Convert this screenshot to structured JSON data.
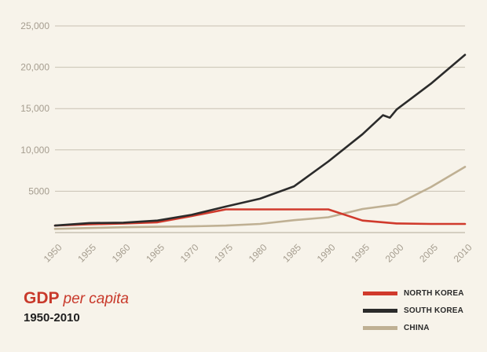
{
  "title": "GDP",
  "title_suffix": "per capita",
  "subtitle": "1950-2010",
  "colors": {
    "background": "#f7f3ea",
    "grid": "#c9c2b3",
    "tick_text": "#a59d8f",
    "title": "#c8392b"
  },
  "chart_data": {
    "type": "line",
    "title": "GDP per capita",
    "subtitle": "1950-2010",
    "xlim": [
      1950,
      2010
    ],
    "ylim": [
      0,
      25000
    ],
    "xticks": [
      "1950",
      "1955",
      "1960",
      "1965",
      "1970",
      "1975",
      "1980",
      "1985",
      "1990",
      "1995",
      "2000",
      "2005",
      "2010"
    ],
    "yticks": [
      "5000",
      "10,000",
      "15,000",
      "20,000",
      "25,000"
    ],
    "ytick_values": [
      5000,
      10000,
      15000,
      20000,
      25000
    ],
    "grid": "horizontal",
    "legend_position": "bottom-right",
    "series": [
      {
        "name": "NORTH KOREA",
        "color": "#d03a2c",
        "x": [
          1950,
          1955,
          1960,
          1965,
          1970,
          1975,
          1980,
          1985,
          1990,
          1995,
          2000,
          2005,
          2010
        ],
        "values": [
          850,
          1000,
          1100,
          1250,
          2000,
          2800,
          2800,
          2800,
          2800,
          1450,
          1100,
          1050,
          1050
        ]
      },
      {
        "name": "SOUTH KOREA",
        "color": "#2b2b2b",
        "x": [
          1950,
          1955,
          1960,
          1965,
          1970,
          1975,
          1980,
          1985,
          1990,
          1995,
          1998,
          1999,
          2000,
          2005,
          2010
        ],
        "values": [
          850,
          1150,
          1200,
          1450,
          2150,
          3150,
          4100,
          5600,
          8600,
          11900,
          14200,
          13900,
          14900,
          18000,
          21500
        ]
      },
      {
        "name": "CHINA",
        "color": "#bfb093",
        "x": [
          1950,
          1955,
          1960,
          1965,
          1970,
          1975,
          1980,
          1985,
          1990,
          1995,
          2000,
          2005,
          2010
        ],
        "values": [
          450,
          550,
          650,
          700,
          750,
          850,
          1050,
          1500,
          1850,
          2850,
          3400,
          5500,
          7950
        ]
      }
    ]
  }
}
